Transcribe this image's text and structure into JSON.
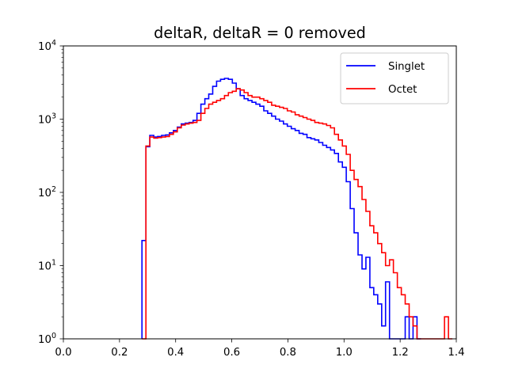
{
  "chart_data": {
    "type": "histogram-step",
    "title": "deltaR, deltaR = 0 removed",
    "xlabel": "",
    "ylabel": "",
    "xlim": [
      0.0,
      1.4
    ],
    "ylim": [
      1,
      10000
    ],
    "yscale": "log",
    "grid": false,
    "legend_position": "top-right",
    "x_ticks": [
      {
        "value": 0.0,
        "label": "0.0"
      },
      {
        "value": 0.2,
        "label": "0.2"
      },
      {
        "value": 0.4,
        "label": "0.4"
      },
      {
        "value": 0.6,
        "label": "0.6"
      },
      {
        "value": 0.8,
        "label": "0.8"
      },
      {
        "value": 1.0,
        "label": "1.0"
      },
      {
        "value": 1.2,
        "label": "1.2"
      },
      {
        "value": 1.4,
        "label": "1.4"
      }
    ],
    "y_ticks": [
      {
        "value": 1,
        "base": "10",
        "exp": "0"
      },
      {
        "value": 10,
        "base": "10",
        "exp": "1"
      },
      {
        "value": 100,
        "base": "10",
        "exp": "2"
      },
      {
        "value": 1000,
        "base": "10",
        "exp": "3"
      },
      {
        "value": 10000,
        "base": "10",
        "exp": "4"
      }
    ],
    "bin_width": 0.014,
    "series": [
      {
        "name": "Singlet",
        "color": "#0000ff",
        "bins": [
          [
            0.28,
            22
          ],
          [
            0.294,
            420
          ],
          [
            0.308,
            600
          ],
          [
            0.322,
            570
          ],
          [
            0.336,
            580
          ],
          [
            0.35,
            600
          ],
          [
            0.364,
            610
          ],
          [
            0.378,
            650
          ],
          [
            0.392,
            700
          ],
          [
            0.406,
            780
          ],
          [
            0.42,
            860
          ],
          [
            0.434,
            880
          ],
          [
            0.448,
            900
          ],
          [
            0.462,
            960
          ],
          [
            0.476,
            1200
          ],
          [
            0.49,
            1600
          ],
          [
            0.504,
            1900
          ],
          [
            0.518,
            2200
          ],
          [
            0.532,
            2800
          ],
          [
            0.546,
            3300
          ],
          [
            0.56,
            3500
          ],
          [
            0.574,
            3600
          ],
          [
            0.588,
            3500
          ],
          [
            0.602,
            3100
          ],
          [
            0.616,
            2600
          ],
          [
            0.63,
            2100
          ],
          [
            0.644,
            1900
          ],
          [
            0.658,
            1800
          ],
          [
            0.672,
            1700
          ],
          [
            0.686,
            1600
          ],
          [
            0.7,
            1500
          ],
          [
            0.714,
            1300
          ],
          [
            0.728,
            1200
          ],
          [
            0.742,
            1100
          ],
          [
            0.756,
            1000
          ],
          [
            0.77,
            940
          ],
          [
            0.784,
            860
          ],
          [
            0.798,
            800
          ],
          [
            0.812,
            740
          ],
          [
            0.826,
            700
          ],
          [
            0.84,
            640
          ],
          [
            0.854,
            620
          ],
          [
            0.868,
            560
          ],
          [
            0.882,
            540
          ],
          [
            0.896,
            520
          ],
          [
            0.91,
            480
          ],
          [
            0.924,
            440
          ],
          [
            0.938,
            410
          ],
          [
            0.952,
            380
          ],
          [
            0.966,
            340
          ],
          [
            0.98,
            260
          ],
          [
            0.994,
            220
          ],
          [
            1.008,
            140
          ],
          [
            1.022,
            60
          ],
          [
            1.036,
            28
          ],
          [
            1.05,
            14
          ],
          [
            1.064,
            9
          ],
          [
            1.078,
            13
          ],
          [
            1.092,
            5
          ],
          [
            1.106,
            4
          ],
          [
            1.12,
            3
          ],
          [
            1.134,
            1.5
          ],
          [
            1.148,
            6
          ],
          [
            1.162,
            1
          ],
          [
            1.176,
            1
          ],
          [
            1.19,
            1
          ],
          [
            1.204,
            1
          ],
          [
            1.218,
            2
          ],
          [
            1.232,
            1
          ],
          [
            1.246,
            2
          ],
          [
            1.26,
            1
          ]
        ]
      },
      {
        "name": "Octet",
        "color": "#ff0000",
        "bins": [
          [
            0.28,
            1
          ],
          [
            0.294,
            430
          ],
          [
            0.308,
            570
          ],
          [
            0.322,
            550
          ],
          [
            0.336,
            560
          ],
          [
            0.35,
            570
          ],
          [
            0.364,
            580
          ],
          [
            0.378,
            620
          ],
          [
            0.392,
            670
          ],
          [
            0.406,
            760
          ],
          [
            0.42,
            830
          ],
          [
            0.434,
            860
          ],
          [
            0.448,
            880
          ],
          [
            0.462,
            900
          ],
          [
            0.476,
            960
          ],
          [
            0.49,
            1200
          ],
          [
            0.504,
            1400
          ],
          [
            0.518,
            1600
          ],
          [
            0.532,
            1700
          ],
          [
            0.546,
            1800
          ],
          [
            0.56,
            1900
          ],
          [
            0.574,
            2100
          ],
          [
            0.588,
            2300
          ],
          [
            0.602,
            2400
          ],
          [
            0.616,
            2600
          ],
          [
            0.63,
            2500
          ],
          [
            0.644,
            2300
          ],
          [
            0.658,
            2100
          ],
          [
            0.672,
            2000
          ],
          [
            0.686,
            2000
          ],
          [
            0.7,
            1900
          ],
          [
            0.714,
            1800
          ],
          [
            0.728,
            1700
          ],
          [
            0.742,
            1550
          ],
          [
            0.756,
            1500
          ],
          [
            0.77,
            1450
          ],
          [
            0.784,
            1400
          ],
          [
            0.798,
            1300
          ],
          [
            0.812,
            1250
          ],
          [
            0.826,
            1150
          ],
          [
            0.84,
            1100
          ],
          [
            0.854,
            1050
          ],
          [
            0.868,
            1000
          ],
          [
            0.882,
            960
          ],
          [
            0.896,
            900
          ],
          [
            0.91,
            880
          ],
          [
            0.924,
            860
          ],
          [
            0.938,
            820
          ],
          [
            0.952,
            760
          ],
          [
            0.966,
            620
          ],
          [
            0.98,
            520
          ],
          [
            0.994,
            430
          ],
          [
            1.008,
            330
          ],
          [
            1.022,
            200
          ],
          [
            1.036,
            150
          ],
          [
            1.05,
            120
          ],
          [
            1.064,
            80
          ],
          [
            1.078,
            55
          ],
          [
            1.092,
            35
          ],
          [
            1.106,
            28
          ],
          [
            1.12,
            20
          ],
          [
            1.134,
            15
          ],
          [
            1.148,
            10
          ],
          [
            1.162,
            12
          ],
          [
            1.176,
            8
          ],
          [
            1.19,
            5
          ],
          [
            1.204,
            4
          ],
          [
            1.218,
            3
          ],
          [
            1.232,
            2
          ],
          [
            1.246,
            1.5
          ],
          [
            1.26,
            1
          ],
          [
            1.274,
            1
          ],
          [
            1.288,
            1
          ],
          [
            1.302,
            1
          ],
          [
            1.316,
            1
          ],
          [
            1.33,
            1
          ],
          [
            1.344,
            1
          ],
          [
            1.358,
            2
          ],
          [
            1.372,
            1
          ]
        ]
      }
    ]
  }
}
